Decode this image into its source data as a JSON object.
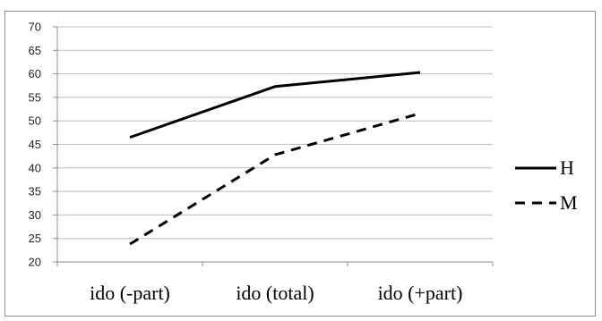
{
  "chart_data": {
    "type": "line",
    "categories": [
      "ido (-part)",
      "ido (total)",
      "ido (+part)"
    ],
    "series": [
      {
        "name": "H",
        "values": [
          46.5,
          57.3,
          60.3
        ],
        "dash": "solid",
        "color": "#000000"
      },
      {
        "name": "M",
        "values": [
          23.8,
          42.8,
          51.6
        ],
        "dash": "dashed",
        "color": "#000000"
      }
    ],
    "title": "",
    "xlabel": "",
    "ylabel": "",
    "ylim": [
      20,
      70
    ],
    "yticks": [
      20,
      25,
      30,
      35,
      40,
      45,
      50,
      55,
      60,
      65,
      70
    ],
    "grid": true,
    "legend_position": "right"
  }
}
